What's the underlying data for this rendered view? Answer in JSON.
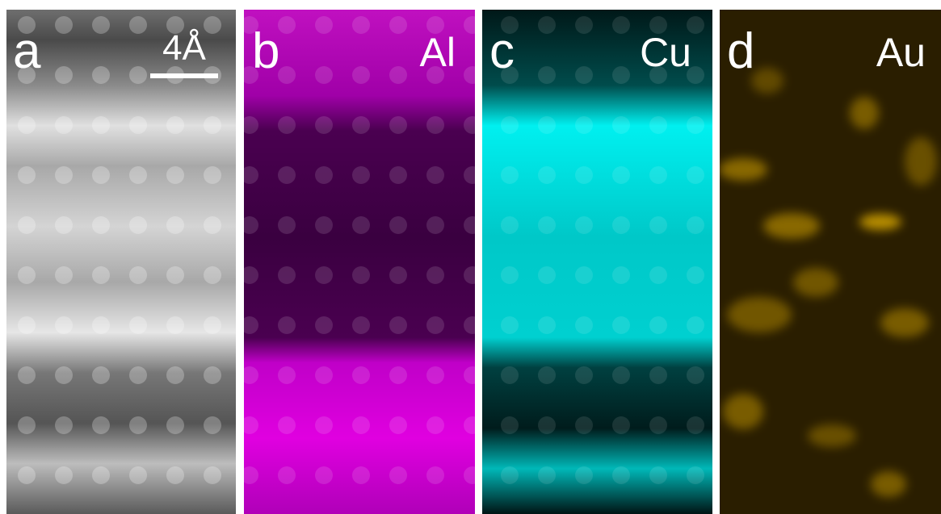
{
  "panels": [
    {
      "letter": "a",
      "scale_bar": "4Å"
    },
    {
      "letter": "b",
      "element": "Al"
    },
    {
      "letter": "c",
      "element": "Cu"
    },
    {
      "letter": "d",
      "element": "Au"
    }
  ]
}
